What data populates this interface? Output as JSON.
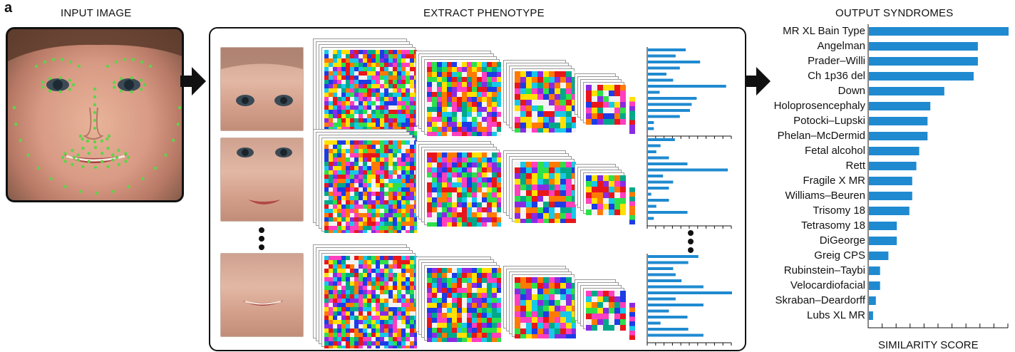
{
  "panel_letter": "a",
  "sections": {
    "input_title": "INPUT IMAGE",
    "extract_title": "EXTRACT PHENOTYPE",
    "output_title": "OUTPUT SYNDROMES"
  },
  "colors": {
    "bar": "#1f8ad0",
    "landmark": "#5fd34a",
    "frame": "#111111"
  },
  "icons": [
    "arrow-right-icon",
    "vertical-ellipsis-icon"
  ],
  "chart_data": {
    "type": "bar",
    "orientation": "horizontal",
    "categories": [
      "MR XL Bain Type",
      "Angelman",
      "Prader–Willi",
      "Ch 1p36 del",
      "Down",
      "Holoprosencephaly",
      "Potocki–Lupski",
      "Phelan–McDermid",
      "Fetal alcohol",
      "Rett",
      "Fragile X MR",
      "Williams–Beuren",
      "Trisomy 18",
      "Tetrasomy 18",
      "DiGeorge",
      "Greig CPS",
      "Rubinstein–Taybi",
      "Velocardiofacial",
      "Skraban–Deardorff",
      "Lubs XL MR"
    ],
    "values": [
      1.0,
      0.78,
      0.78,
      0.75,
      0.54,
      0.44,
      0.42,
      0.42,
      0.36,
      0.34,
      0.31,
      0.31,
      0.29,
      0.2,
      0.2,
      0.14,
      0.08,
      0.08,
      0.05,
      0.03
    ],
    "xlabel": "SIMILARITY SCORE",
    "xlim": [
      0,
      1
    ],
    "x_ticks": 10,
    "tick_labels_shown": false
  },
  "feature_vectors": [
    [
      0.45,
      0.33,
      0.62,
      0.38,
      0.22,
      0.3,
      0.93,
      0.14,
      0.58,
      0.52,
      0.5,
      0.38,
      0.07,
      0.07
    ],
    [
      0.32,
      0.15,
      0.1,
      0.25,
      0.47,
      0.95,
      0.18,
      0.3,
      0.25,
      0.04,
      0.25,
      0.1,
      0.47,
      0.07
    ],
    [
      0.6,
      0.48,
      0.3,
      0.33,
      0.4,
      0.66,
      1.0,
      0.33,
      0.66,
      0.25,
      0.47,
      0.15,
      0.48,
      0.66
    ]
  ]
}
